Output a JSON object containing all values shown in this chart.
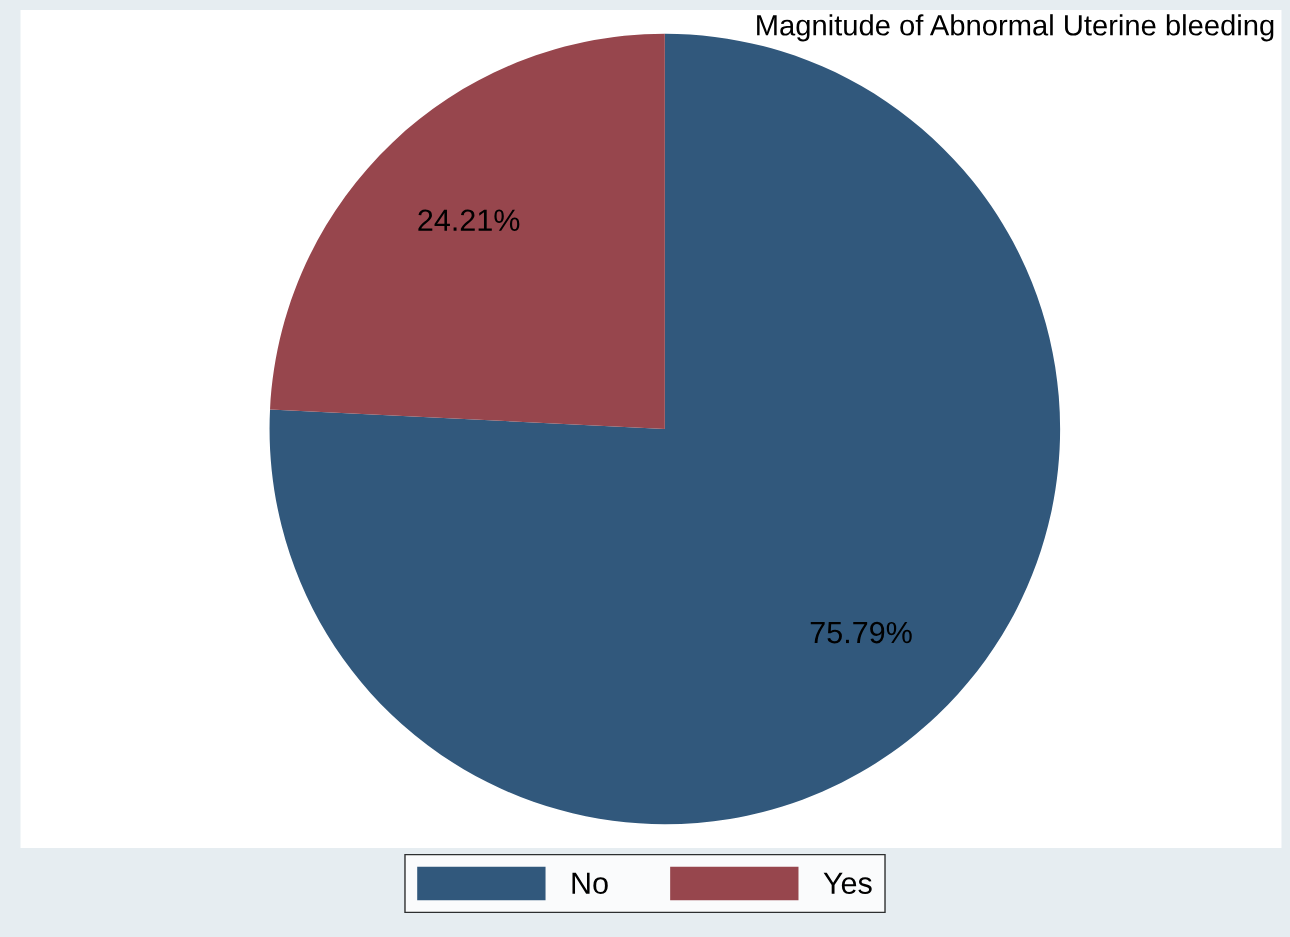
{
  "chart_data": {
    "type": "pie",
    "title": "Magnitude of Abnormal Uterine bleeding",
    "categories": [
      "No",
      "Yes"
    ],
    "values": [
      75.79,
      24.21
    ],
    "colors": [
      "#31587c",
      "#97464d"
    ],
    "value_labels": [
      "75.79%",
      "24.21%"
    ],
    "legend": "bottom"
  }
}
